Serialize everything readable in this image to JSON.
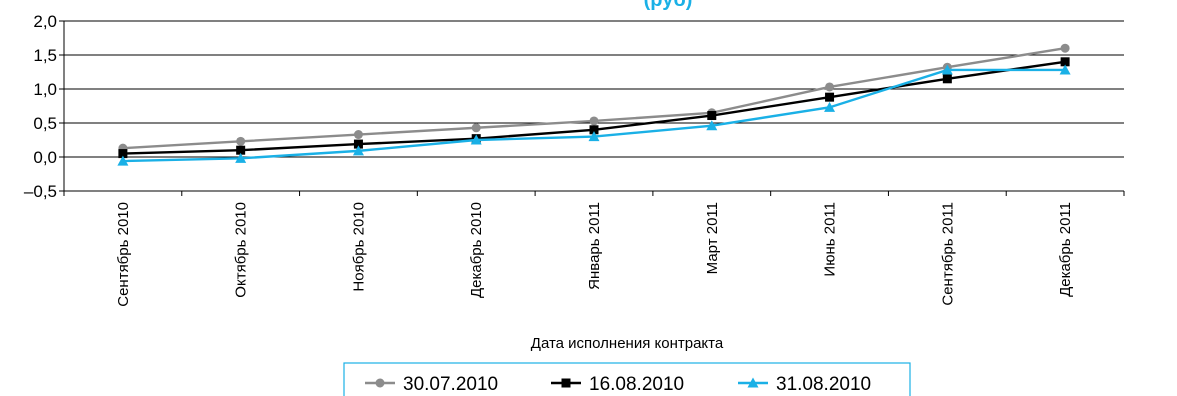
{
  "chart_data": {
    "type": "line",
    "title": "(руб)",
    "xlabel": "Дата исполнения контракта",
    "ylabel": "",
    "categories": [
      "Сентябрь 2010",
      "Октябрь 2010",
      "Ноябрь 2010",
      "Декабрь 2010",
      "Январь 2011",
      "Март 2011",
      "Июнь 2011",
      "Сентябрь 2011",
      "Декабрь 2011"
    ],
    "ylim": [
      -0.5,
      2.0
    ],
    "yticks": [
      -0.5,
      0.0,
      0.5,
      1.0,
      1.5,
      2.0
    ],
    "ytick_labels": [
      "–0,5",
      "0,0",
      "0,5",
      "1,0",
      "1,5",
      "2,0"
    ],
    "grid": "horizontal",
    "legend_position": "bottom",
    "series": [
      {
        "name": "30.07.2010",
        "color": "#8c8c8c",
        "marker": "circle",
        "values": [
          0.13,
          0.23,
          0.33,
          0.43,
          0.53,
          0.65,
          1.03,
          1.32,
          1.6
        ]
      },
      {
        "name": "16.08.2010",
        "color": "#000000",
        "marker": "square",
        "values": [
          0.05,
          0.1,
          0.19,
          0.27,
          0.4,
          0.61,
          0.88,
          1.15,
          1.4
        ]
      },
      {
        "name": "31.08.2010",
        "color": "#1ab0e6",
        "marker": "triangle",
        "values": [
          -0.06,
          -0.02,
          0.09,
          0.25,
          0.3,
          0.46,
          0.73,
          1.28,
          1.28
        ]
      }
    ]
  }
}
